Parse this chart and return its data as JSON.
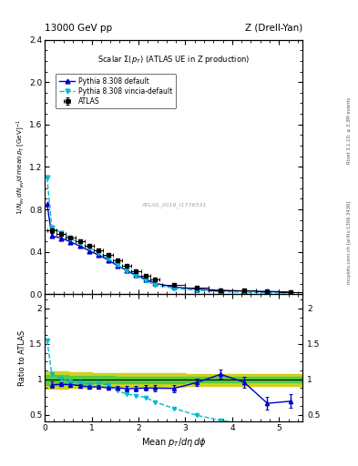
{
  "title_left": "13000 GeV pp",
  "title_right": "Z (Drell-Yan)",
  "panel_title": "Scalar Σ(p_{T}) (ATLAS UE in Z production)",
  "watermark": "ATLAS_2019_I1736531",
  "right_label_top": "Rivet 3.1.10, ≥ 3.3M events",
  "right_label_bottom": "mcplots.cern.ch [arXiv:1306.3436]",
  "atlas_x": [
    0.15,
    0.35,
    0.55,
    0.75,
    0.95,
    1.15,
    1.35,
    1.55,
    1.75,
    1.95,
    2.15,
    2.35,
    2.75,
    3.25,
    3.75,
    4.25,
    4.75,
    5.25
  ],
  "atlas_y": [
    0.6,
    0.57,
    0.535,
    0.5,
    0.46,
    0.415,
    0.37,
    0.318,
    0.268,
    0.22,
    0.178,
    0.14,
    0.09,
    0.06,
    0.04,
    0.034,
    0.029,
    0.024
  ],
  "atlas_xerr": [
    0.1,
    0.1,
    0.1,
    0.1,
    0.1,
    0.1,
    0.1,
    0.1,
    0.1,
    0.1,
    0.1,
    0.1,
    0.25,
    0.25,
    0.25,
    0.25,
    0.25,
    0.25
  ],
  "atlas_yerr": [
    0.025,
    0.018,
    0.016,
    0.015,
    0.014,
    0.013,
    0.012,
    0.011,
    0.01,
    0.009,
    0.008,
    0.007,
    0.005,
    0.004,
    0.003,
    0.003,
    0.003,
    0.002
  ],
  "py_def_x": [
    0.05,
    0.15,
    0.35,
    0.55,
    0.75,
    0.95,
    1.15,
    1.35,
    1.55,
    1.75,
    1.95,
    2.15,
    2.35,
    2.75,
    3.25,
    3.75,
    4.25,
    4.75,
    5.25
  ],
  "py_def_y": [
    0.85,
    0.55,
    0.53,
    0.495,
    0.455,
    0.41,
    0.37,
    0.325,
    0.27,
    0.225,
    0.182,
    0.145,
    0.105,
    0.07,
    0.05,
    0.038,
    0.032,
    0.027,
    0.022
  ],
  "py_vin_x": [
    0.05,
    0.15,
    0.35,
    0.55,
    0.75,
    0.95,
    1.15,
    1.35,
    1.55,
    1.75,
    1.95,
    2.15,
    2.35,
    2.75,
    3.25,
    3.75,
    4.25,
    4.75,
    5.25
  ],
  "py_vin_y": [
    1.1,
    0.63,
    0.58,
    0.53,
    0.48,
    0.44,
    0.39,
    0.34,
    0.278,
    0.218,
    0.172,
    0.132,
    0.088,
    0.058,
    0.038,
    0.027,
    0.02,
    0.015,
    0.011
  ],
  "ratio_py_def_x": [
    0.15,
    0.35,
    0.55,
    0.75,
    0.95,
    1.15,
    1.35,
    1.55,
    1.75,
    1.95,
    2.15,
    2.35,
    2.75,
    3.25,
    3.75,
    4.25,
    4.75,
    5.25
  ],
  "ratio_py_def_y": [
    0.92,
    0.93,
    0.925,
    0.91,
    0.893,
    0.893,
    0.878,
    0.88,
    0.866,
    0.87,
    0.876,
    0.875,
    0.87,
    0.955,
    1.07,
    0.96,
    0.66,
    0.69
  ],
  "ratio_py_def_yerr": [
    0.045,
    0.03,
    0.028,
    0.027,
    0.026,
    0.025,
    0.024,
    0.032,
    0.034,
    0.036,
    0.04,
    0.043,
    0.05,
    0.055,
    0.065,
    0.075,
    0.09,
    0.095
  ],
  "ratio_py_vin_x": [
    0.05,
    0.15,
    0.35,
    0.55,
    0.75,
    0.95,
    1.15,
    1.35,
    1.55,
    1.75,
    1.95,
    2.15,
    2.35,
    2.75,
    3.25,
    3.75,
    4.25,
    4.75,
    5.25
  ],
  "ratio_py_vin_y": [
    1.55,
    1.07,
    1.005,
    0.97,
    0.955,
    0.935,
    0.94,
    0.92,
    0.84,
    0.79,
    0.77,
    0.745,
    0.68,
    0.59,
    0.49,
    0.42,
    0.375,
    0.325,
    0.29
  ],
  "band_x_edges": [
    0.0,
    0.5,
    1.0,
    1.5,
    2.0,
    2.5,
    3.0,
    3.5,
    4.0,
    4.5,
    5.0,
    5.5
  ],
  "band_green_lo": [
    0.925,
    0.935,
    0.94,
    0.945,
    0.948,
    0.95,
    0.952,
    0.953,
    0.954,
    0.955,
    0.956,
    0.957
  ],
  "band_green_hi": [
    1.055,
    1.048,
    1.044,
    1.04,
    1.038,
    1.036,
    1.034,
    1.033,
    1.032,
    1.032,
    1.031,
    1.03
  ],
  "band_yellow_lo": [
    0.87,
    0.88,
    0.888,
    0.893,
    0.895,
    0.897,
    0.9,
    0.902,
    0.903,
    0.905,
    0.907,
    0.908
  ],
  "band_yellow_hi": [
    1.11,
    1.1,
    1.092,
    1.085,
    1.082,
    1.08,
    1.078,
    1.077,
    1.076,
    1.075,
    1.074,
    1.073
  ],
  "color_atlas": "#000000",
  "color_py_def": "#0000cc",
  "color_py_vin": "#00bbcc",
  "color_green": "#44cc44",
  "color_yellow": "#cccc00",
  "xlim": [
    0.0,
    5.5
  ],
  "ylim_main": [
    0.0,
    2.4
  ],
  "ylim_ratio": [
    0.4,
    2.2
  ],
  "yticks_main": [
    0.0,
    0.4,
    0.8,
    1.2,
    1.6,
    2.0,
    2.4
  ],
  "yticks_ratio": [
    0.5,
    1.0,
    1.5,
    2.0
  ],
  "xticks": [
    0,
    1,
    2,
    3,
    4,
    5
  ]
}
